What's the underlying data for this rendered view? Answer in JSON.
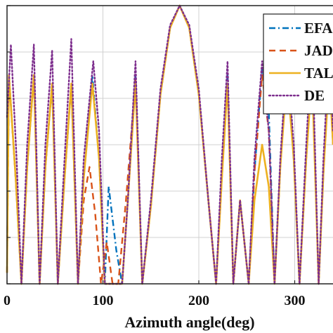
{
  "chart_data": {
    "type": "line",
    "title": "",
    "xlabel": "Azimuth angle(deg)",
    "ylabel": "",
    "xlim": [
      0,
      340
    ],
    "ylim": [
      0,
      1
    ],
    "xticks": [
      0,
      100,
      200,
      300
    ],
    "xtick_labels": [
      "0",
      "100",
      "200",
      "300"
    ],
    "ytick_labels": [
      "",
      "",
      "",
      "",
      "",
      "",
      ""
    ],
    "grid": true,
    "legend_position": "top-right",
    "series": [
      {
        "name": "EFA",
        "color": "#0072BD",
        "dash": "dash-dot",
        "points": [
          [
            0,
            0.04
          ],
          [
            2,
            0.75
          ],
          [
            9,
            0.38
          ],
          [
            15,
            0.0
          ],
          [
            21,
            0.42
          ],
          [
            28,
            0.75
          ],
          [
            34,
            0.0
          ],
          [
            40,
            0.42
          ],
          [
            47,
            0.72
          ],
          [
            53,
            0.0
          ],
          [
            60,
            0.38
          ],
          [
            67,
            0.72
          ],
          [
            74,
            0.0
          ],
          [
            80,
            0.38
          ],
          [
            89,
            0.75
          ],
          [
            96,
            0.45
          ],
          [
            102,
            0.0
          ],
          [
            106,
            0.35
          ],
          [
            114,
            0.12
          ],
          [
            120,
            0.0
          ],
          [
            126,
            0.3
          ],
          [
            134,
            0.75
          ],
          [
            141,
            0.0
          ],
          [
            150,
            0.28
          ],
          [
            160,
            0.68
          ],
          [
            170,
            0.92
          ],
          [
            180,
            1.0
          ],
          [
            190,
            0.92
          ],
          [
            200,
            0.68
          ],
          [
            210,
            0.3
          ],
          [
            218,
            0.0
          ],
          [
            224,
            0.4
          ],
          [
            230,
            0.75
          ],
          [
            236,
            0.0
          ],
          [
            243,
            0.3
          ],
          [
            252,
            0.0
          ],
          [
            258,
            0.4
          ],
          [
            266,
            0.78
          ],
          [
            273,
            0.62
          ],
          [
            279,
            0.0
          ],
          [
            285,
            0.42
          ],
          [
            292,
            0.8
          ],
          [
            299,
            0.45
          ],
          [
            305,
            0.0
          ],
          [
            312,
            0.45
          ],
          [
            318,
            0.78
          ],
          [
            325,
            0.0
          ],
          [
            330,
            0.4
          ],
          [
            336,
            0.78
          ],
          [
            340,
            0.5
          ]
        ]
      },
      {
        "name": "JADE",
        "color": "#D95319",
        "dash": "dashed",
        "points": [
          [
            0,
            0.04
          ],
          [
            2,
            0.75
          ],
          [
            9,
            0.38
          ],
          [
            15,
            0.0
          ],
          [
            21,
            0.42
          ],
          [
            28,
            0.75
          ],
          [
            34,
            0.0
          ],
          [
            40,
            0.42
          ],
          [
            47,
            0.72
          ],
          [
            53,
            0.0
          ],
          [
            60,
            0.38
          ],
          [
            67,
            0.72
          ],
          [
            74,
            0.0
          ],
          [
            80,
            0.3
          ],
          [
            86,
            0.42
          ],
          [
            92,
            0.25
          ],
          [
            98,
            0.0
          ],
          [
            104,
            0.15
          ],
          [
            110,
            0.0
          ],
          [
            116,
            0.0
          ],
          [
            124,
            0.3
          ],
          [
            134,
            0.73
          ],
          [
            141,
            0.0
          ],
          [
            150,
            0.28
          ],
          [
            160,
            0.68
          ],
          [
            170,
            0.92
          ],
          [
            180,
            1.0
          ],
          [
            190,
            0.92
          ],
          [
            200,
            0.68
          ],
          [
            210,
            0.3
          ],
          [
            218,
            0.0
          ],
          [
            224,
            0.38
          ],
          [
            230,
            0.72
          ],
          [
            236,
            0.0
          ],
          [
            243,
            0.3
          ],
          [
            252,
            0.0
          ],
          [
            258,
            0.4
          ],
          [
            266,
            0.75
          ],
          [
            273,
            0.55
          ],
          [
            279,
            0.0
          ],
          [
            285,
            0.42
          ],
          [
            292,
            0.78
          ],
          [
            299,
            0.45
          ],
          [
            305,
            0.0
          ],
          [
            312,
            0.45
          ],
          [
            318,
            0.78
          ],
          [
            325,
            0.0
          ],
          [
            330,
            0.4
          ],
          [
            336,
            0.76
          ],
          [
            340,
            0.5
          ]
        ]
      },
      {
        "name": "TAL",
        "color": "#EDB120",
        "dash": "solid",
        "points": [
          [
            0,
            0.04
          ],
          [
            2,
            0.75
          ],
          [
            9,
            0.38
          ],
          [
            15,
            0.0
          ],
          [
            21,
            0.42
          ],
          [
            28,
            0.75
          ],
          [
            34,
            0.0
          ],
          [
            40,
            0.42
          ],
          [
            47,
            0.72
          ],
          [
            53,
            0.0
          ],
          [
            60,
            0.38
          ],
          [
            67,
            0.72
          ],
          [
            74,
            0.0
          ],
          [
            80,
            0.38
          ],
          [
            89,
            0.72
          ],
          [
            96,
            0.45
          ],
          [
            102,
            0.0
          ],
          [
            108,
            0.0
          ],
          [
            114,
            0.0
          ],
          [
            120,
            0.0
          ],
          [
            126,
            0.3
          ],
          [
            134,
            0.72
          ],
          [
            141,
            0.0
          ],
          [
            150,
            0.28
          ],
          [
            160,
            0.68
          ],
          [
            170,
            0.92
          ],
          [
            180,
            1.0
          ],
          [
            190,
            0.92
          ],
          [
            200,
            0.68
          ],
          [
            210,
            0.3
          ],
          [
            218,
            0.0
          ],
          [
            224,
            0.38
          ],
          [
            230,
            0.72
          ],
          [
            236,
            0.0
          ],
          [
            243,
            0.3
          ],
          [
            252,
            0.0
          ],
          [
            258,
            0.3
          ],
          [
            266,
            0.5
          ],
          [
            273,
            0.35
          ],
          [
            279,
            0.0
          ],
          [
            285,
            0.42
          ],
          [
            292,
            0.75
          ],
          [
            299,
            0.45
          ],
          [
            305,
            0.0
          ],
          [
            312,
            0.45
          ],
          [
            318,
            0.75
          ],
          [
            325,
            0.0
          ],
          [
            330,
            0.4
          ],
          [
            336,
            0.75
          ],
          [
            340,
            0.5
          ]
        ]
      },
      {
        "name": "DE",
        "color": "#7E2F8E",
        "dash": "dotted",
        "points": [
          [
            0,
            0.6
          ],
          [
            4,
            0.86
          ],
          [
            10,
            0.45
          ],
          [
            15,
            0.0
          ],
          [
            21,
            0.5
          ],
          [
            28,
            0.86
          ],
          [
            34,
            0.0
          ],
          [
            40,
            0.5
          ],
          [
            47,
            0.84
          ],
          [
            53,
            0.0
          ],
          [
            60,
            0.45
          ],
          [
            67,
            0.88
          ],
          [
            74,
            0.0
          ],
          [
            80,
            0.45
          ],
          [
            90,
            0.8
          ],
          [
            96,
            0.55
          ],
          [
            102,
            0.0
          ],
          [
            106,
            0.0
          ],
          [
            112,
            0.0
          ],
          [
            120,
            0.0
          ],
          [
            126,
            0.3
          ],
          [
            134,
            0.8
          ],
          [
            141,
            0.0
          ],
          [
            150,
            0.3
          ],
          [
            160,
            0.7
          ],
          [
            170,
            0.93
          ],
          [
            180,
            1.0
          ],
          [
            190,
            0.93
          ],
          [
            200,
            0.7
          ],
          [
            210,
            0.3
          ],
          [
            218,
            0.0
          ],
          [
            224,
            0.45
          ],
          [
            230,
            0.8
          ],
          [
            236,
            0.0
          ],
          [
            243,
            0.3
          ],
          [
            252,
            0.0
          ],
          [
            258,
            0.45
          ],
          [
            266,
            0.8
          ],
          [
            273,
            0.55
          ],
          [
            279,
            0.0
          ],
          [
            285,
            0.45
          ],
          [
            292,
            0.82
          ],
          [
            299,
            0.5
          ],
          [
            305,
            0.0
          ],
          [
            312,
            0.5
          ],
          [
            318,
            0.88
          ],
          [
            325,
            0.0
          ],
          [
            330,
            0.45
          ],
          [
            336,
            0.85
          ],
          [
            340,
            0.55
          ]
        ]
      }
    ]
  }
}
